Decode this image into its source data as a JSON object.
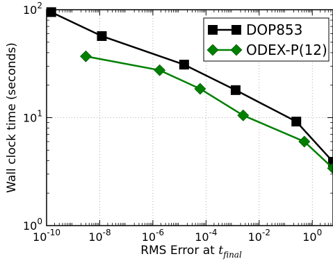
{
  "chart_data": {
    "type": "line",
    "title": "",
    "xlabel": "RMS Error at ",
    "xlabel_math": "t",
    "xlabel_sub": "final",
    "ylabel": "Wall clock time (seconds)",
    "x_scale": "log",
    "y_scale": "log",
    "xlim": [
      1e-10,
      6
    ],
    "ylim": [
      1,
      100
    ],
    "grid": true,
    "legend_position": "top-right",
    "x_ticks": [
      {
        "value": 1e-10,
        "base": "10",
        "exp": "-10"
      },
      {
        "value": 1e-08,
        "base": "10",
        "exp": "-8"
      },
      {
        "value": 1e-06,
        "base": "10",
        "exp": "-6"
      },
      {
        "value": 0.0001,
        "base": "10",
        "exp": "-4"
      },
      {
        "value": 0.01,
        "base": "10",
        "exp": "-2"
      },
      {
        "value": 1,
        "base": "10",
        "exp": "0"
      }
    ],
    "y_ticks": [
      {
        "value": 1,
        "base": "10",
        "exp": "0"
      },
      {
        "value": 10,
        "base": "10",
        "exp": "1"
      },
      {
        "value": 100,
        "base": "10",
        "exp": "2"
      }
    ],
    "series": [
      {
        "name": "DOP853",
        "color": "#000000",
        "marker": "square",
        "x": [
          1.5e-10,
          1.2e-08,
          1.5e-05,
          0.0013,
          0.25,
          6
        ],
        "y": [
          95,
          57,
          31,
          18,
          9.2,
          3.9
        ]
      },
      {
        "name": "ODEX-P(12)",
        "color": "#008000",
        "marker": "diamond",
        "x": [
          3e-09,
          1.8e-06,
          6e-05,
          0.0025,
          0.5,
          6
        ],
        "y": [
          37,
          27.5,
          18.5,
          10.5,
          6,
          3.4
        ]
      }
    ]
  }
}
